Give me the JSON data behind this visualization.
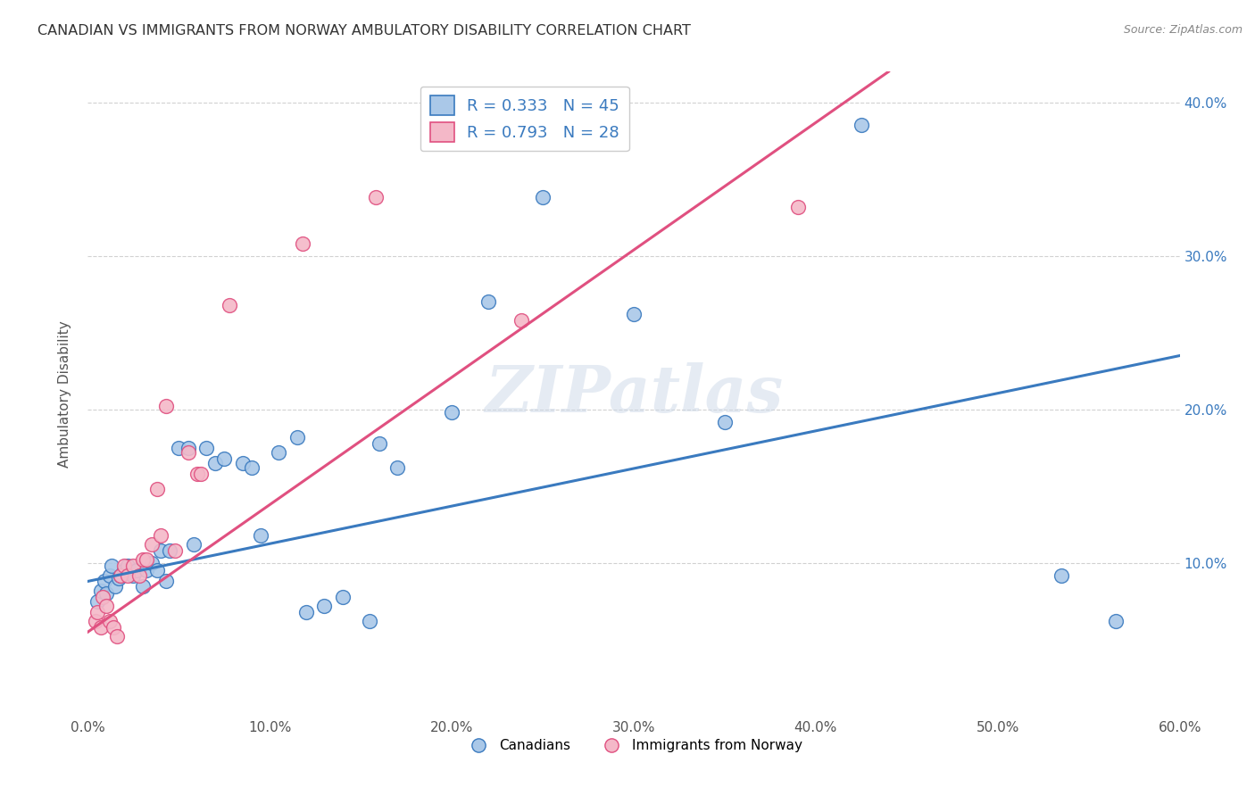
{
  "title": "CANADIAN VS IMMIGRANTS FROM NORWAY AMBULATORY DISABILITY CORRELATION CHART",
  "source": "Source: ZipAtlas.com",
  "ylabel": "Ambulatory Disability",
  "xlim": [
    0.0,
    0.6
  ],
  "ylim": [
    0.0,
    0.42
  ],
  "xtick_labels": [
    "0.0%",
    "10.0%",
    "20.0%",
    "30.0%",
    "40.0%",
    "50.0%",
    "60.0%"
  ],
  "xtick_vals": [
    0.0,
    0.1,
    0.2,
    0.3,
    0.4,
    0.5,
    0.6
  ],
  "ytick_labels": [
    "10.0%",
    "20.0%",
    "30.0%",
    "40.0%"
  ],
  "ytick_vals": [
    0.1,
    0.2,
    0.3,
    0.4
  ],
  "canadians_R": "0.333",
  "canadians_N": "45",
  "norway_R": "0.793",
  "norway_N": "28",
  "legend_blue_label": "Canadians",
  "legend_pink_label": "Immigrants from Norway",
  "blue_color": "#aac8e8",
  "pink_color": "#f4b8c8",
  "blue_edge_color": "#3a7abf",
  "pink_edge_color": "#e05080",
  "blue_line_color": "#3a7abf",
  "pink_line_color": "#e05080",
  "canadians_x": [
    0.005,
    0.007,
    0.009,
    0.01,
    0.012,
    0.013,
    0.015,
    0.017,
    0.018,
    0.02,
    0.022,
    0.025,
    0.027,
    0.03,
    0.032,
    0.035,
    0.038,
    0.04,
    0.043,
    0.045,
    0.05,
    0.055,
    0.058,
    0.065,
    0.07,
    0.075,
    0.085,
    0.09,
    0.095,
    0.105,
    0.115,
    0.12,
    0.13,
    0.14,
    0.155,
    0.16,
    0.17,
    0.2,
    0.22,
    0.25,
    0.3,
    0.35,
    0.425,
    0.535,
    0.565
  ],
  "canadians_y": [
    0.075,
    0.082,
    0.088,
    0.08,
    0.092,
    0.098,
    0.085,
    0.09,
    0.092,
    0.095,
    0.098,
    0.092,
    0.095,
    0.085,
    0.095,
    0.1,
    0.095,
    0.108,
    0.088,
    0.108,
    0.175,
    0.175,
    0.112,
    0.175,
    0.165,
    0.168,
    0.165,
    0.162,
    0.118,
    0.172,
    0.182,
    0.068,
    0.072,
    0.078,
    0.062,
    0.178,
    0.162,
    0.198,
    0.27,
    0.338,
    0.262,
    0.192,
    0.385,
    0.092,
    0.062
  ],
  "norway_x": [
    0.004,
    0.005,
    0.007,
    0.008,
    0.01,
    0.012,
    0.014,
    0.016,
    0.018,
    0.02,
    0.022,
    0.025,
    0.028,
    0.03,
    0.032,
    0.035,
    0.038,
    0.04,
    0.043,
    0.048,
    0.055,
    0.06,
    0.062,
    0.078,
    0.118,
    0.158,
    0.238,
    0.39
  ],
  "norway_y": [
    0.062,
    0.068,
    0.058,
    0.078,
    0.072,
    0.062,
    0.058,
    0.052,
    0.092,
    0.098,
    0.092,
    0.098,
    0.092,
    0.102,
    0.102,
    0.112,
    0.148,
    0.118,
    0.202,
    0.108,
    0.172,
    0.158,
    0.158,
    0.268,
    0.308,
    0.338,
    0.258,
    0.332
  ],
  "blue_trendline_x": [
    0.0,
    0.6
  ],
  "blue_trendline_y": [
    0.088,
    0.235
  ],
  "pink_trendline_x": [
    0.0,
    0.44
  ],
  "pink_trendline_y": [
    0.055,
    0.42
  ],
  "watermark_text": "ZIPatlas",
  "background_color": "#ffffff",
  "grid_color": "#cccccc"
}
